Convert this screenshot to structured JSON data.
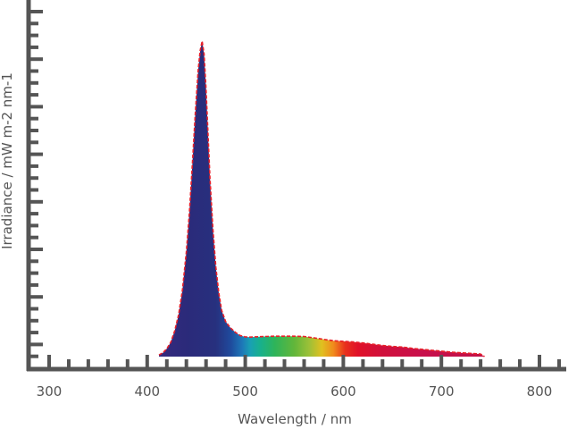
{
  "chart_data": {
    "type": "area",
    "title": "",
    "xlabel": "Wavelength / nm",
    "ylabel": "Irradiance / mW m-2 nm-1",
    "xlim": [
      280,
      820
    ],
    "ylim": [
      0,
      100
    ],
    "x_ticks": [
      300,
      400,
      500,
      600,
      700,
      800
    ],
    "y_ticks_labeled": false,
    "grid": false,
    "legend": "none",
    "fill": "visible-spectrum color gradient (violet-blue to red) under the curve",
    "outline_color": "#e8202a",
    "axis_color": "#555555",
    "series": [
      {
        "x": [
          412,
          416,
          420,
          424,
          428,
          432,
          436,
          440,
          443,
          446,
          449,
          452,
          454,
          456,
          458,
          460,
          462,
          464,
          467,
          470,
          473,
          476,
          480,
          485,
          490,
          495,
          500,
          505,
          510,
          520,
          530,
          540,
          550,
          560,
          570,
          580,
          590,
          600,
          610,
          620,
          630,
          640,
          650,
          660,
          670,
          680,
          690,
          700,
          710,
          720,
          730,
          740,
          744
        ],
        "y": [
          0.5,
          1.2,
          2.5,
          4.5,
          8,
          13,
          21,
          33,
          45,
          60,
          76,
          90,
          96,
          99,
          95,
          84,
          70,
          56,
          40,
          28,
          20,
          14.5,
          11,
          9,
          7.6,
          6.6,
          6.2,
          6.1,
          6.2,
          6.3,
          6.4,
          6.4,
          6.4,
          6.3,
          5.9,
          5.4,
          5,
          4.8,
          4.6,
          4.3,
          3.9,
          3.5,
          3.2,
          3,
          2.6,
          2.3,
          2,
          1.7,
          1.4,
          1.2,
          1,
          0.8,
          0
        ]
      }
    ]
  }
}
